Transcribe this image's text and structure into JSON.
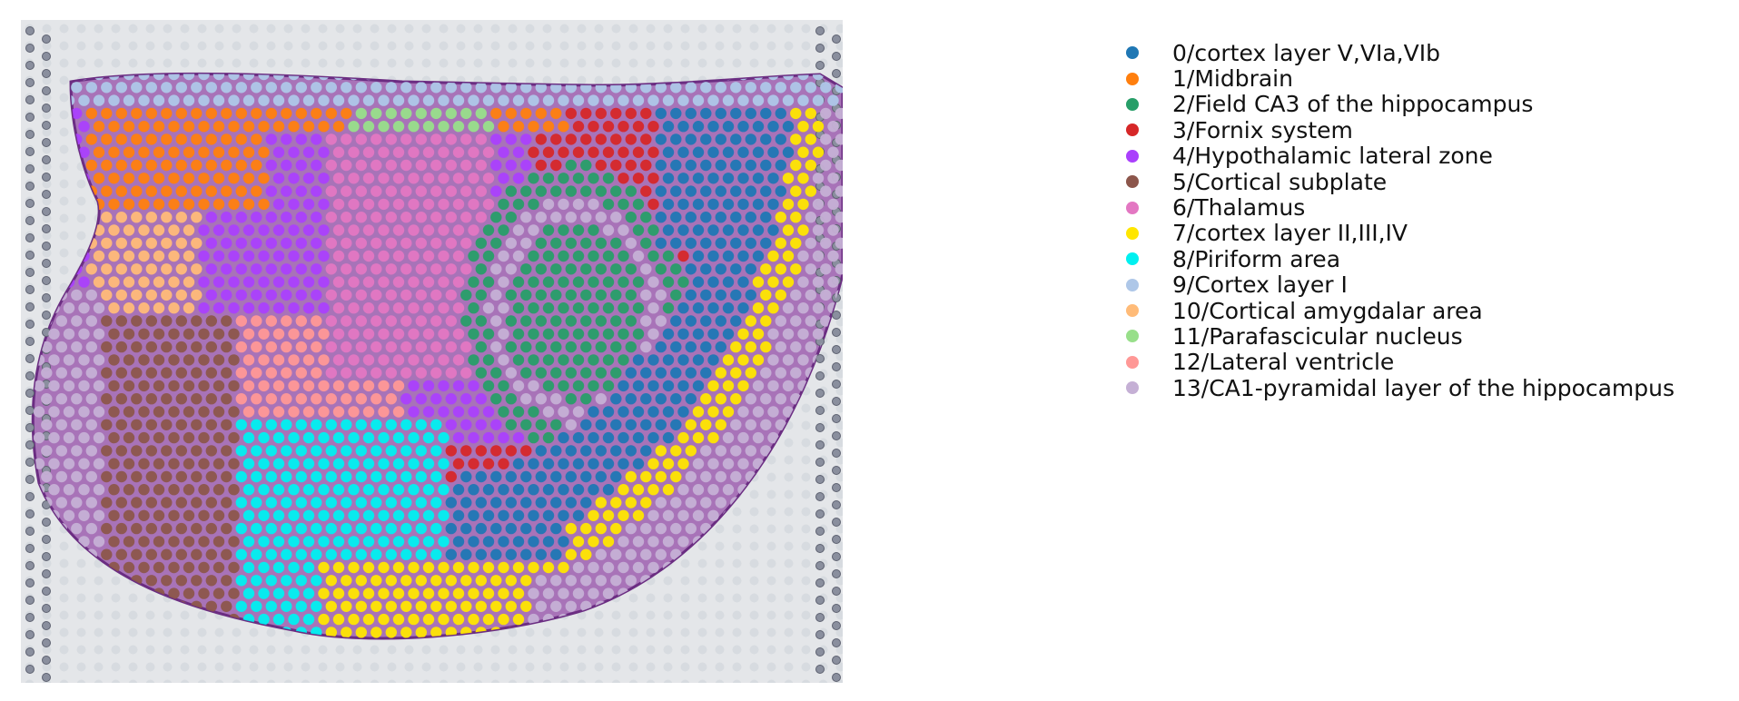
{
  "chart_data": {
    "type": "scatter",
    "title": "",
    "xlabel": "",
    "ylabel": "",
    "grid": false,
    "legend_position": "right",
    "background": "H&E tissue section image",
    "categories": [
      {
        "id": 0,
        "label": "0/cortex layer V,VIa,VIb",
        "color": "#1f77b4"
      },
      {
        "id": 1,
        "label": "1/Midbrain",
        "color": "#ff7f0e"
      },
      {
        "id": 2,
        "label": "2/Field CA3 of the hippocampus",
        "color": "#279e68"
      },
      {
        "id": 3,
        "label": "3/Fornix system",
        "color": "#d62728"
      },
      {
        "id": 4,
        "label": "4/Hypothalamic lateral zone",
        "color": "#aa40fc"
      },
      {
        "id": 5,
        "label": "5/Cortical subplate",
        "color": "#8c564b"
      },
      {
        "id": 6,
        "label": "6/Thalamus",
        "color": "#e377c2"
      },
      {
        "id": 7,
        "label": "7/cortex layer II,III,IV",
        "color": "#ffe600"
      },
      {
        "id": 8,
        "label": "8/Piriform area",
        "color": "#00f0f0"
      },
      {
        "id": 9,
        "label": "9/Cortex layer I",
        "color": "#aec7e8"
      },
      {
        "id": 10,
        "label": "10/Cortical amygdalar area",
        "color": "#ffbb78"
      },
      {
        "id": 11,
        "label": "11/Parafascicular nucleus",
        "color": "#98df8a"
      },
      {
        "id": 12,
        "label": "12/Lateral ventricle",
        "color": "#ff9896"
      },
      {
        "id": 13,
        "label": "13/CA1-pyramidal layer of the hippocampus",
        "color": "#c5b0d5"
      }
    ]
  }
}
